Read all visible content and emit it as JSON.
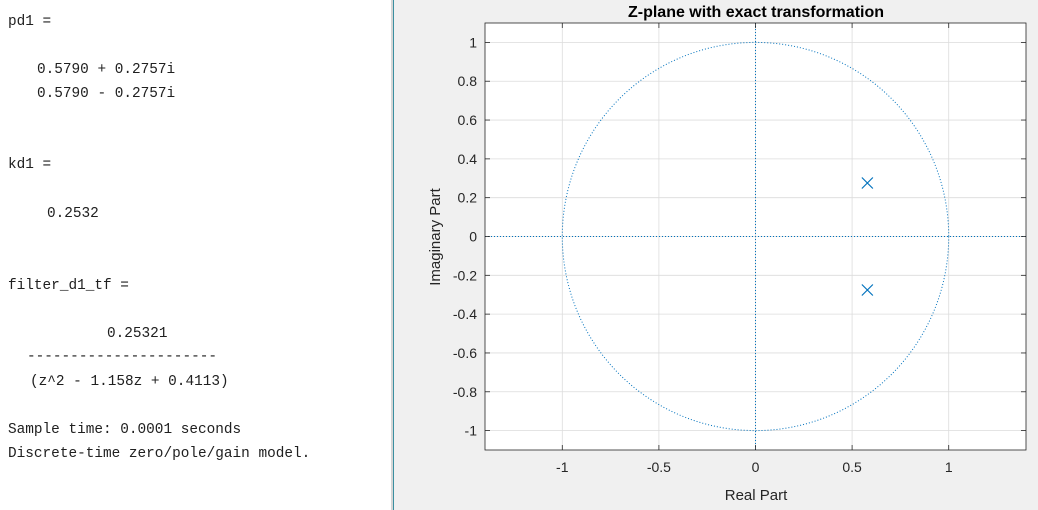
{
  "console": {
    "pd1_header": "pd1 =",
    "pd1_values": [
      "0.5790 + 0.2757i",
      "0.5790 - 0.2757i"
    ],
    "kd1_header": "kd1 =",
    "kd1_value": "0.2532",
    "tf_header": "filter_d1_tf =",
    "tf_numerator": "0.25321",
    "tf_fraction_bar": "----------------------",
    "tf_denominator": "(z^2 - 1.158z + 0.4113)",
    "sample_time": "Sample time: 0.0001 seconds",
    "model_type": "Discrete-time zero/pole/gain model."
  },
  "chart_data": {
    "type": "scatter",
    "title": "Z-plane with exact transformation",
    "xlabel": "Real Part",
    "ylabel": "Imaginary Part",
    "xlim": [
      -1.4,
      1.4
    ],
    "ylim": [
      -1.1,
      1.1
    ],
    "x_ticks": [
      -1,
      -0.5,
      0,
      0.5,
      1
    ],
    "x_tick_labels": [
      "-1",
      "-0.5",
      "0",
      "0.5",
      "1"
    ],
    "y_ticks": [
      1,
      0.8,
      0.6,
      0.4,
      0.2,
      0,
      -0.2,
      -0.4,
      -0.6,
      -0.8,
      -1
    ],
    "y_tick_labels": [
      "1",
      "0.8",
      "0.6",
      "0.4",
      "0.2",
      "0",
      "-0.2",
      "-0.4",
      "-0.6",
      "-0.8",
      "-1"
    ],
    "grid": true,
    "unit_circle": true,
    "marker": "x",
    "poles": [
      {
        "x": 0.579,
        "y": 0.2757
      },
      {
        "x": 0.579,
        "y": -0.2757
      }
    ],
    "colors": {
      "marker": "#0072bd",
      "guides": "#0072bd",
      "grid": "#dcdcdc",
      "axes": "#262626"
    }
  }
}
